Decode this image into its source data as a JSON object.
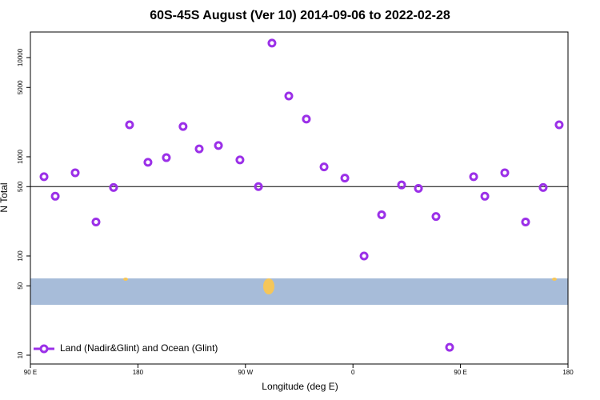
{
  "chart_data": {
    "type": "scatter",
    "title": "60S-45S August (Ver 10)   2014-09-06 to 2022-02-28",
    "xlabel": "Longitude (deg E)",
    "ylabel": "N Total",
    "ylog": true,
    "hline": 500,
    "legend": "bottom-left",
    "xlim": [
      90,
      540
    ],
    "ylim": [
      8.15,
      18100
    ],
    "xticks": [
      {
        "value": 90,
        "label": "90 E"
      },
      180,
      {
        "value": 270,
        "label": "90 W"
      },
      {
        "value": 360,
        "label": "0"
      },
      {
        "value": 450,
        "label": "90 E"
      },
      {
        "value": 540,
        "label": "180"
      }
    ],
    "yticks": [
      10,
      50,
      100,
      500,
      1000,
      5000,
      10000
    ],
    "x": [
      101.4,
      110.8,
      127.5,
      144.9,
      159.6,
      173,
      188.4,
      203.8,
      217.8,
      231.3,
      247.4,
      265.4,
      280.9,
      292.2,
      306.3,
      321,
      335.8,
      353.2,
      369.3,
      384,
      400.7,
      414.8,
      429.5,
      440.9,
      461,
      470.4,
      487.1,
      504.5,
      519.2,
      532.6
    ],
    "series": [
      {
        "name": "Land (Nadir&Glint) and Ocean (Glint)",
        "color": "#9b30e8",
        "values": [
          630,
          400,
          690,
          220,
          490,
          2100,
          880,
          980,
          2020,
          1200,
          1300,
          930,
          500,
          14000,
          4100,
          2400,
          790,
          610,
          100,
          260,
          520,
          480,
          250,
          12,
          630,
          400,
          690,
          220,
          490,
          2100
        ]
      }
    ]
  }
}
